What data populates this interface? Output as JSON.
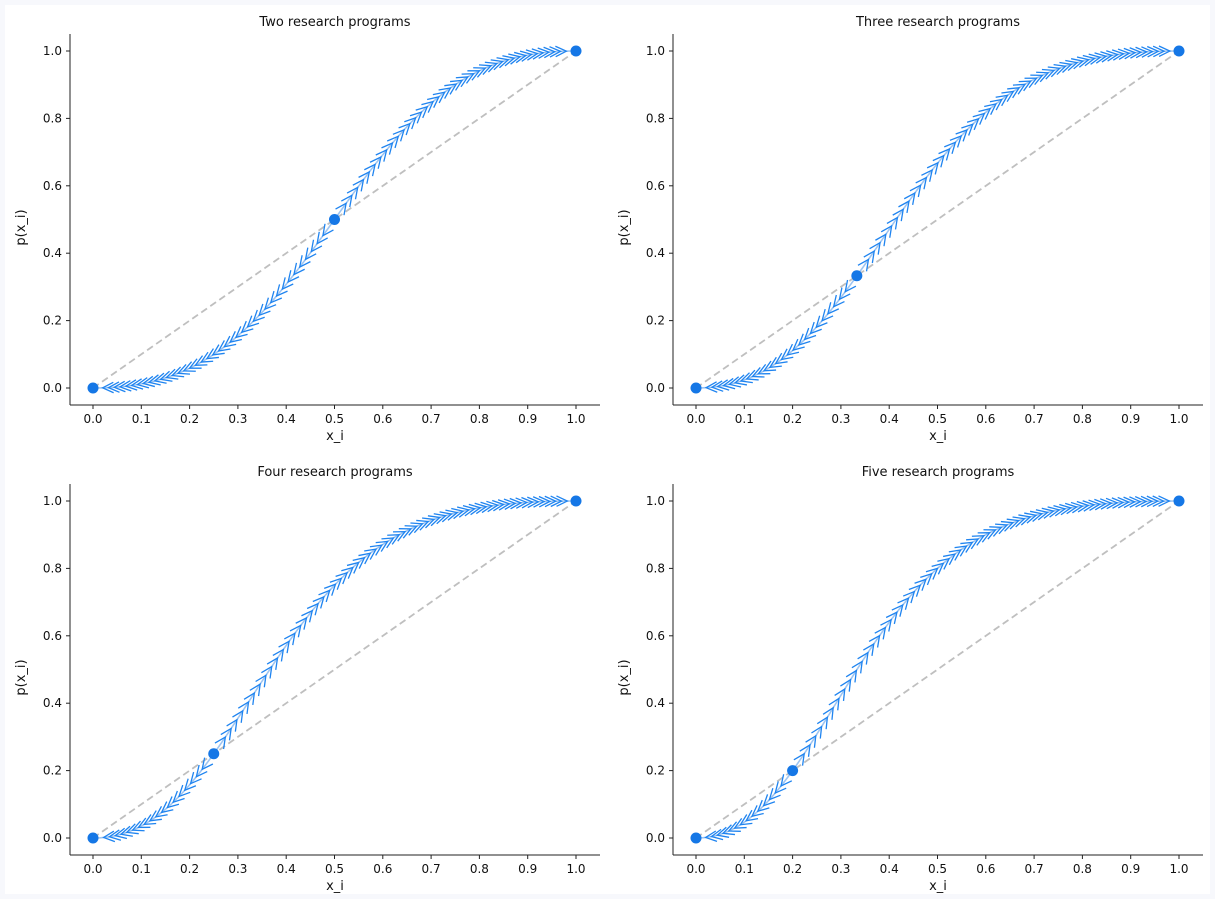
{
  "colors": {
    "background": "#ffffff",
    "axis": "#222222",
    "curve": "#1f84f0",
    "point": "#1577e6",
    "segment": "#9ec5f2",
    "diagonal": "#bfbfbf"
  },
  "chart_data": [
    {
      "type": "line",
      "title": "Two research programs",
      "xlabel": "x_i",
      "ylabel": "p(x_i)",
      "xlim": [
        0.0,
        1.0
      ],
      "ylim": [
        0.0,
        1.0
      ],
      "x_ticks": [
        "0.0",
        "0.1",
        "0.2",
        "0.3",
        "0.4",
        "0.5",
        "0.6",
        "0.7",
        "0.8",
        "0.9",
        "1.0"
      ],
      "y_ticks": [
        "0.0",
        "0.2",
        "0.4",
        "0.6",
        "0.8",
        "1.0"
      ],
      "grid": false,
      "n_programs": 2,
      "equilibria": [
        [
          0.0,
          0.0
        ],
        [
          0.5,
          0.5
        ],
        [
          1.0,
          1.0
        ]
      ],
      "curve": "p(x) = x^2 / (x^2 + (1 - x)^2)",
      "diagonal": [
        [
          0.0,
          0.0
        ],
        [
          1.0,
          1.0
        ]
      ]
    },
    {
      "type": "line",
      "title": "Three research programs",
      "xlabel": "x_i",
      "ylabel": "p(x_i)",
      "xlim": [
        0.0,
        1.0
      ],
      "ylim": [
        0.0,
        1.0
      ],
      "x_ticks": [
        "0.0",
        "0.1",
        "0.2",
        "0.3",
        "0.4",
        "0.5",
        "0.6",
        "0.7",
        "0.8",
        "0.9",
        "1.0"
      ],
      "y_ticks": [
        "0.0",
        "0.2",
        "0.4",
        "0.6",
        "0.8",
        "1.0"
      ],
      "grid": false,
      "n_programs": 3,
      "equilibria": [
        [
          0.0,
          0.0
        ],
        [
          0.333,
          0.333
        ],
        [
          1.0,
          1.0
        ]
      ],
      "curve": "p(x) = x^2 / (x^2 + (1 - x)^2 / 2)",
      "diagonal": [
        [
          0.0,
          0.0
        ],
        [
          1.0,
          1.0
        ]
      ]
    },
    {
      "type": "line",
      "title": "Four research programs",
      "xlabel": "x_i",
      "ylabel": "p(x_i)",
      "xlim": [
        0.0,
        1.0
      ],
      "ylim": [
        0.0,
        1.0
      ],
      "x_ticks": [
        "0.0",
        "0.1",
        "0.2",
        "0.3",
        "0.4",
        "0.5",
        "0.6",
        "0.7",
        "0.8",
        "0.9",
        "1.0"
      ],
      "y_ticks": [
        "0.0",
        "0.2",
        "0.4",
        "0.6",
        "0.8",
        "1.0"
      ],
      "grid": false,
      "n_programs": 4,
      "equilibria": [
        [
          0.0,
          0.0
        ],
        [
          0.25,
          0.25
        ],
        [
          1.0,
          1.0
        ]
      ],
      "curve": "p(x) = x^2 / (x^2 + (1 - x)^2 / 3)",
      "diagonal": [
        [
          0.0,
          0.0
        ],
        [
          1.0,
          1.0
        ]
      ]
    },
    {
      "type": "line",
      "title": "Five research programs",
      "xlabel": "x_i",
      "ylabel": "p(x_i)",
      "xlim": [
        0.0,
        1.0
      ],
      "ylim": [
        0.0,
        1.0
      ],
      "x_ticks": [
        "0.0",
        "0.1",
        "0.2",
        "0.3",
        "0.4",
        "0.5",
        "0.6",
        "0.7",
        "0.8",
        "0.9",
        "1.0"
      ],
      "y_ticks": [
        "0.0",
        "0.2",
        "0.4",
        "0.6",
        "0.8",
        "1.0"
      ],
      "grid": false,
      "n_programs": 5,
      "equilibria": [
        [
          0.0,
          0.0
        ],
        [
          0.2,
          0.2
        ],
        [
          1.0,
          1.0
        ]
      ],
      "curve": "p(x) = x^2 / (x^2 + (1 - x)^2 / 4)",
      "diagonal": [
        [
          0.0,
          0.0
        ],
        [
          1.0,
          1.0
        ]
      ]
    }
  ]
}
